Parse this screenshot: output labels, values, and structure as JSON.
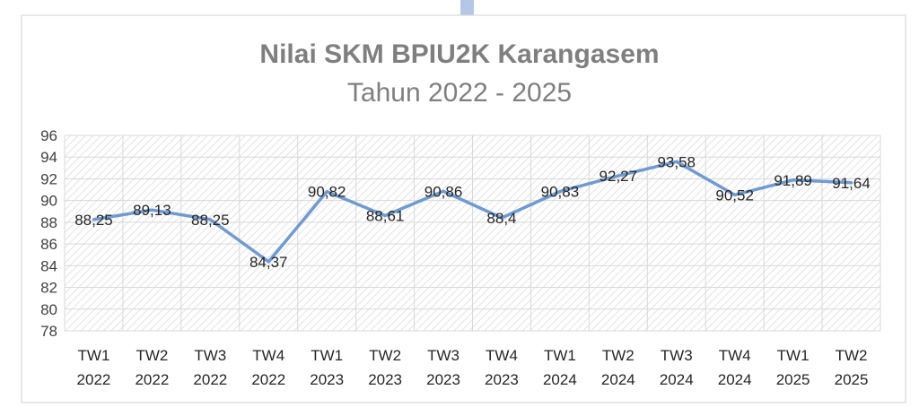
{
  "chart_data": {
    "type": "line",
    "title": "Nilai SKM BPIU2K Karangasem",
    "subtitle": "Tahun 2022 - 2025",
    "categories": [
      [
        "TW1",
        "2022"
      ],
      [
        "TW2",
        "2022"
      ],
      [
        "TW3",
        "2022"
      ],
      [
        "TW4",
        "2022"
      ],
      [
        "TW1",
        "2023"
      ],
      [
        "TW2",
        "2023"
      ],
      [
        "TW3",
        "2023"
      ],
      [
        "TW4",
        "2023"
      ],
      [
        "TW1",
        "2024"
      ],
      [
        "TW2",
        "2024"
      ],
      [
        "TW3",
        "2024"
      ],
      [
        "TW4",
        "2024"
      ],
      [
        "TW1",
        "2025"
      ],
      [
        "TW2",
        "2025"
      ]
    ],
    "values": [
      88.25,
      89.13,
      88.25,
      84.37,
      90.82,
      88.61,
      90.86,
      88.4,
      90.83,
      92.27,
      93.58,
      90.52,
      91.89,
      91.64
    ],
    "data_labels": [
      "88,25",
      "89,13",
      "88,25",
      "84,37",
      "90,82",
      "88,61",
      "90,86",
      "88,4",
      "90,83",
      "92,27",
      "93,58",
      "90,52",
      "91,89",
      "91,64"
    ],
    "ylim": [
      78,
      96
    ],
    "yticks": [
      78,
      80,
      82,
      84,
      86,
      88,
      90,
      92,
      94,
      96
    ],
    "grid": true,
    "legend": "none",
    "colors": {
      "line": "#6f9bd1",
      "title": "#7f7f7f",
      "grid": "#d9d9d9",
      "hatch": "#e3e3e3",
      "top_marker": "#b4c7e7"
    }
  }
}
